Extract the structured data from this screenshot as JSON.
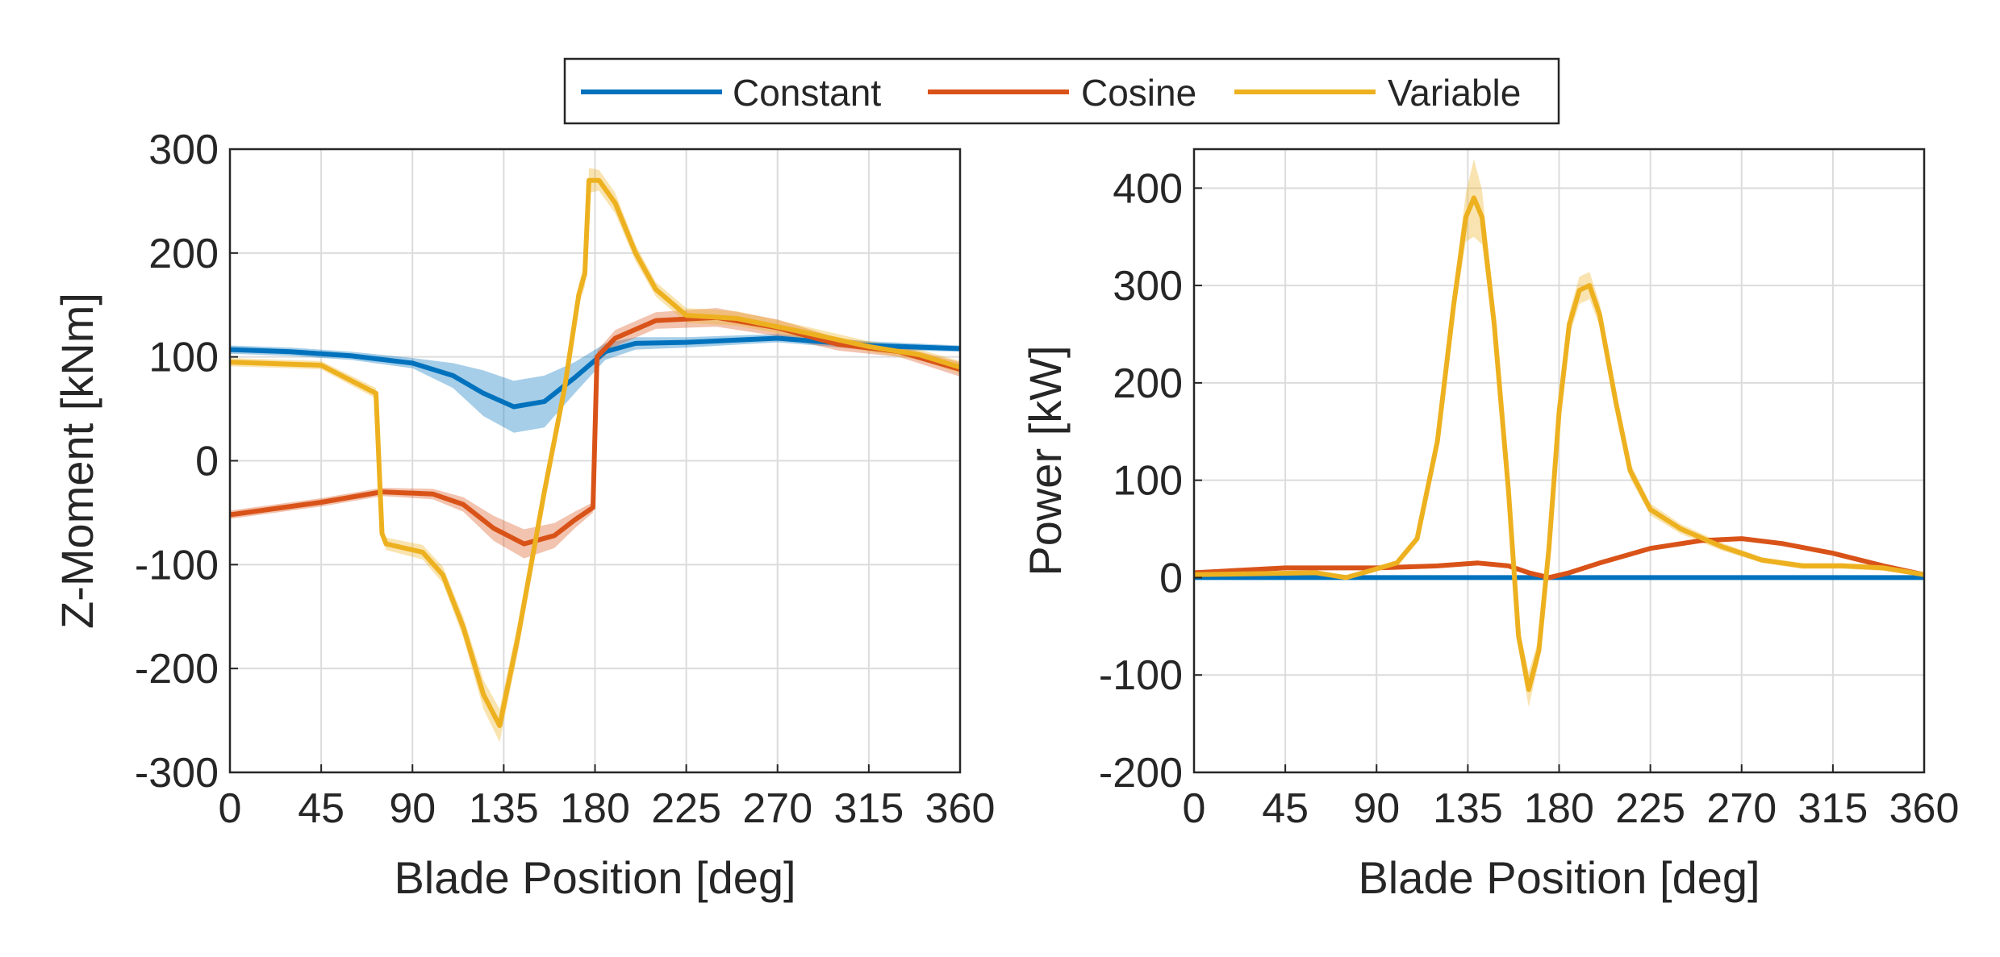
{
  "legend": {
    "placement": "top-center",
    "entries": [
      {
        "name": "Constant",
        "color": "#0072BD"
      },
      {
        "name": "Cosine",
        "color": "#D95319"
      },
      {
        "name": "Variable",
        "color": "#EDB120"
      }
    ]
  },
  "chart_data": [
    {
      "type": "line",
      "title": "",
      "xlabel": "Blade Position [deg]",
      "ylabel": "Z-Moment [kNm]",
      "xlim": [
        0,
        360
      ],
      "ylim": [
        -300,
        300
      ],
      "xticks": [
        0,
        45,
        90,
        135,
        180,
        225,
        270,
        315,
        360
      ],
      "yticks": [
        -300,
        -200,
        -100,
        0,
        100,
        200,
        300
      ],
      "grid": true,
      "series": [
        {
          "name": "Constant",
          "color": "#0072BD",
          "x": [
            0,
            30,
            60,
            90,
            110,
            125,
            140,
            155,
            170,
            185,
            200,
            225,
            270,
            315,
            360
          ],
          "y": [
            107,
            105,
            101,
            94,
            82,
            65,
            52,
            57,
            80,
            105,
            113,
            114,
            118,
            111,
            108
          ],
          "band": [
            4,
            4,
            4,
            5,
            12,
            22,
            25,
            25,
            15,
            8,
            6,
            5,
            4,
            4,
            3
          ]
        },
        {
          "name": "Cosine",
          "color": "#D95319",
          "x": [
            0,
            45,
            75,
            100,
            115,
            130,
            145,
            160,
            170,
            179,
            181,
            190,
            210,
            240,
            270,
            300,
            330,
            360
          ],
          "y": [
            -52,
            -40,
            -30,
            -32,
            -42,
            -65,
            -80,
            -72,
            -57,
            -45,
            100,
            118,
            135,
            138,
            128,
            112,
            105,
            88
          ],
          "band": [
            4,
            4,
            4,
            5,
            7,
            12,
            14,
            12,
            8,
            5,
            6,
            8,
            8,
            9,
            8,
            6,
            5,
            7
          ]
        },
        {
          "name": "Variable",
          "color": "#EDB120",
          "x": [
            0,
            45,
            72,
            75,
            77,
            95,
            105,
            115,
            125,
            133,
            142,
            155,
            165,
            172,
            175,
            177,
            182,
            190,
            200,
            210,
            225,
            250,
            280,
            315,
            340,
            360
          ],
          "y": [
            95,
            92,
            65,
            -70,
            -80,
            -88,
            -110,
            -160,
            -225,
            -255,
            -170,
            -30,
            70,
            160,
            180,
            270,
            270,
            248,
            200,
            165,
            140,
            137,
            125,
            110,
            102,
            90
          ],
          "band": [
            4,
            4,
            5,
            6,
            6,
            7,
            8,
            10,
            14,
            16,
            14,
            12,
            10,
            10,
            12,
            12,
            10,
            10,
            8,
            7,
            7,
            7,
            6,
            5,
            5,
            6
          ]
        }
      ]
    },
    {
      "type": "line",
      "title": "",
      "xlabel": "Blade Position [deg]",
      "ylabel": "Power [kW]",
      "xlim": [
        0,
        360
      ],
      "ylim": [
        -200,
        440
      ],
      "xticks": [
        0,
        45,
        90,
        135,
        180,
        225,
        270,
        315,
        360
      ],
      "yticks": [
        -200,
        -100,
        0,
        100,
        200,
        300,
        400
      ],
      "grid": true,
      "series": [
        {
          "name": "Constant",
          "color": "#0072BD",
          "x": [
            0,
            360
          ],
          "y": [
            0,
            0
          ],
          "band": [
            1,
            1
          ]
        },
        {
          "name": "Cosine",
          "color": "#D95319",
          "x": [
            0,
            45,
            90,
            120,
            140,
            155,
            165,
            175,
            185,
            200,
            225,
            250,
            270,
            290,
            315,
            340,
            360
          ],
          "y": [
            5,
            10,
            10,
            12,
            15,
            12,
            5,
            0,
            5,
            15,
            30,
            38,
            40,
            35,
            25,
            12,
            3
          ],
          "band": [
            1,
            1,
            1,
            1,
            2,
            2,
            2,
            2,
            2,
            2,
            2,
            2,
            2,
            2,
            2,
            2,
            1
          ]
        },
        {
          "name": "Variable",
          "color": "#EDB120",
          "x": [
            0,
            60,
            75,
            85,
            100,
            110,
            120,
            128,
            134,
            138,
            142,
            148,
            155,
            160,
            165,
            170,
            175,
            180,
            185,
            190,
            195,
            200,
            208,
            215,
            225,
            240,
            260,
            280,
            300,
            320,
            340,
            360
          ],
          "y": [
            3,
            5,
            0,
            6,
            15,
            40,
            140,
            280,
            370,
            390,
            370,
            260,
            90,
            -60,
            -115,
            -75,
            30,
            170,
            260,
            295,
            300,
            270,
            180,
            110,
            70,
            50,
            32,
            18,
            12,
            12,
            10,
            3
          ],
          "band": [
            2,
            2,
            2,
            2,
            3,
            4,
            8,
            15,
            25,
            40,
            28,
            15,
            10,
            12,
            18,
            12,
            8,
            10,
            12,
            14,
            14,
            12,
            10,
            8,
            6,
            5,
            4,
            3,
            3,
            3,
            3,
            2
          ]
        }
      ]
    }
  ]
}
